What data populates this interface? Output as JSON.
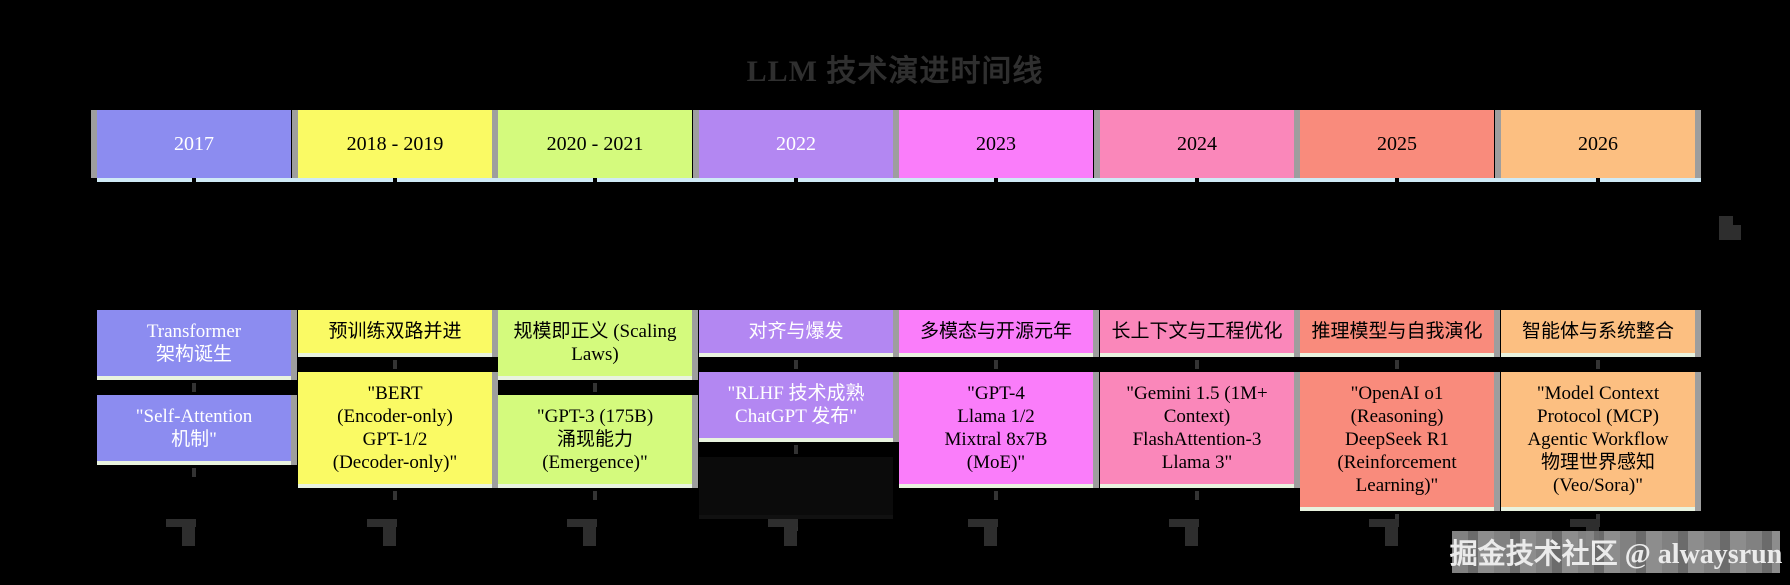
{
  "title": {
    "text": "LLM 技术演进时间线",
    "color": "#2f2f2f"
  },
  "watermark": {
    "text": "掘金技术社区 @ alwaysrun",
    "text_color": "#ffffff",
    "bg_color": "#8d8d8d"
  },
  "palette": {
    "background": "#000000",
    "axis_line": "#cfeaf6",
    "axis_tick": "#000000",
    "separator_gray": "#9e9e9e",
    "connector_dark": "#2e2e2e"
  },
  "timeline": {
    "sections": [
      {
        "period": "2017",
        "color": "#8c8cf0",
        "text_color": "#ffffff",
        "events": [
          {
            "lines": [
              "Transformer",
              "架构诞生"
            ]
          },
          {
            "lines": [
              "\"Self-Attention",
              "机制\""
            ]
          }
        ]
      },
      {
        "period": "2018 - 2019",
        "color": "#fafa64",
        "text_color": "#000000",
        "events": [
          {
            "lines": [
              "预训练双路并进"
            ]
          },
          {
            "lines": [
              "\"BERT",
              "(Encoder-only)",
              "GPT-1/2",
              "(Decoder-only)\""
            ]
          }
        ]
      },
      {
        "period": "2020 - 2021",
        "color": "#d4fa7d",
        "text_color": "#000000",
        "events": [
          {
            "lines": [
              "规模即正义 (Scaling",
              "Laws)"
            ]
          },
          {
            "lines": [
              "\"GPT-3 (175B)",
              "涌现能力",
              "(Emergence)\""
            ]
          }
        ]
      },
      {
        "period": "2022",
        "color": "#b387f2",
        "text_color": "#ffffff",
        "events": [
          {
            "lines": [
              "对齐与爆发"
            ]
          },
          {
            "lines": [
              "\"RLHF 技术成熟",
              "ChatGPT 发布\""
            ]
          },
          {
            "lines": [],
            "variant": "dark"
          }
        ]
      },
      {
        "period": "2023",
        "color": "#fa7dfa",
        "text_color": "#000000",
        "events": [
          {
            "lines": [
              "多模态与开源元年"
            ]
          },
          {
            "lines": [
              "\"GPT-4",
              "Llama 1/2",
              "Mixtral 8x7B",
              "(MoE)\""
            ]
          }
        ]
      },
      {
        "period": "2024",
        "color": "#fa87ba",
        "text_color": "#000000",
        "events": [
          {
            "lines": [
              "长上下文与工程优化"
            ]
          },
          {
            "lines": [
              "\"Gemini 1.5 (1M+",
              "Context)",
              "FlashAttention-3",
              "Llama 3\""
            ]
          }
        ]
      },
      {
        "period": "2025",
        "color": "#f98b7c",
        "text_color": "#000000",
        "events": [
          {
            "lines": [
              "推理模型与自我演化"
            ]
          },
          {
            "lines": [
              "\"OpenAI o1",
              "(Reasoning)",
              "DeepSeek R1",
              "(Reinforcement",
              "Learning)\""
            ]
          }
        ]
      },
      {
        "period": "2026",
        "color": "#fcbf81",
        "text_color": "#000000",
        "events": [
          {
            "lines": [
              "智能体与系统整合"
            ]
          },
          {
            "lines": [
              "\"Model Context",
              "Protocol (MCP)",
              "Agentic Workflow",
              "物理世界感知",
              "(Veo/Sora)\""
            ]
          }
        ]
      }
    ]
  }
}
